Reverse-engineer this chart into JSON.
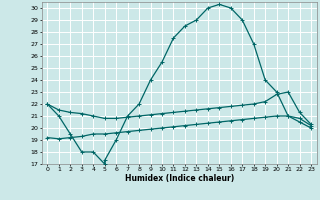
{
  "xlabel": "Humidex (Indice chaleur)",
  "xlim": [
    -0.5,
    23.5
  ],
  "ylim": [
    17,
    30.5
  ],
  "yticks": [
    17,
    18,
    19,
    20,
    21,
    22,
    23,
    24,
    25,
    26,
    27,
    28,
    29,
    30
  ],
  "xticks": [
    0,
    1,
    2,
    3,
    4,
    5,
    6,
    7,
    8,
    9,
    10,
    11,
    12,
    13,
    14,
    15,
    16,
    17,
    18,
    19,
    20,
    21,
    22,
    23
  ],
  "bg_color": "#cce8e8",
  "line_color": "#006666",
  "grid_color": "#ffffff",
  "curve1_x": [
    0,
    1,
    2,
    3,
    4,
    5,
    5,
    6,
    7,
    8,
    9,
    10,
    11,
    12,
    13,
    14,
    15,
    16,
    17,
    18,
    19,
    20,
    21,
    22,
    23
  ],
  "curve1_y": [
    22,
    21,
    19.5,
    18,
    18,
    17,
    17.3,
    19,
    21,
    22,
    24,
    25.5,
    27.5,
    28.5,
    29,
    30,
    30.3,
    30,
    29,
    27,
    24,
    23,
    21,
    20.5,
    20
  ],
  "curve2_x": [
    0,
    1,
    2,
    3,
    4,
    5,
    6,
    7,
    8,
    9,
    10,
    11,
    12,
    13,
    14,
    15,
    16,
    17,
    18,
    19,
    20,
    21,
    22,
    23
  ],
  "curve2_y": [
    19.2,
    19.1,
    19.2,
    19.3,
    19.5,
    19.5,
    19.6,
    19.7,
    19.8,
    19.9,
    20.0,
    20.1,
    20.2,
    20.3,
    20.4,
    20.5,
    20.6,
    20.7,
    20.8,
    20.9,
    21.0,
    21.0,
    20.8,
    20.2
  ],
  "curve3_x": [
    0,
    1,
    2,
    3,
    4,
    5,
    6,
    7,
    8,
    9,
    10,
    11,
    12,
    13,
    14,
    15,
    16,
    17,
    18,
    19,
    20,
    21,
    22,
    23
  ],
  "curve3_y": [
    22.0,
    21.5,
    21.3,
    21.2,
    21.0,
    20.8,
    20.8,
    20.9,
    21.0,
    21.1,
    21.2,
    21.3,
    21.4,
    21.5,
    21.6,
    21.7,
    21.8,
    21.9,
    22.0,
    22.2,
    22.8,
    23.0,
    21.3,
    20.3
  ]
}
